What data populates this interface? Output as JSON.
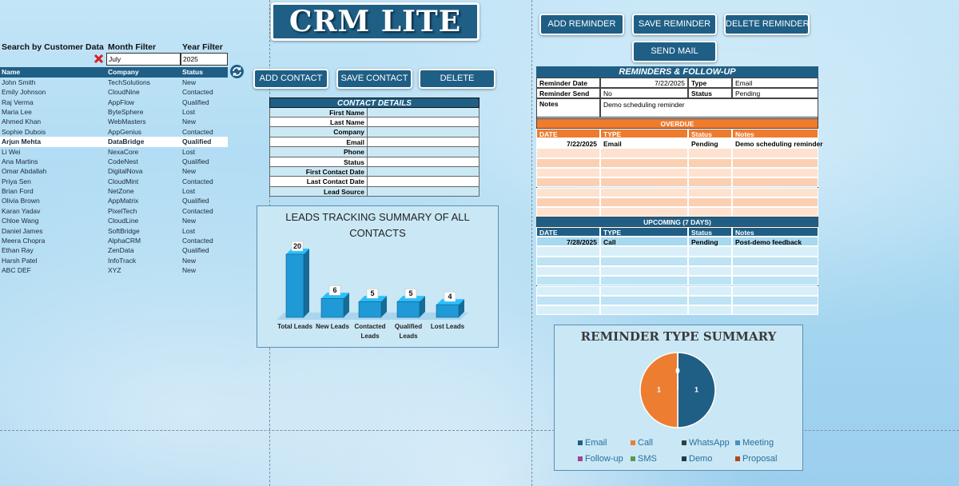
{
  "header": {
    "title": "CRM LITE"
  },
  "buttons": {
    "add_reminder": "ADD REMINDER",
    "save_reminder": "SAVE REMINDER",
    "delete_reminder": "DELETE REMINDER",
    "send_mail": "SEND MAIL",
    "add_contact": "ADD CONTACT",
    "save_contact": "SAVE CONTACT",
    "delete": "DELETE"
  },
  "filters": {
    "search_label": "Search by Customer Data",
    "month_label": "Month Filter",
    "year_label": "Year Filter",
    "month_value": "July",
    "year_value": "2025"
  },
  "contacts": {
    "columns": [
      "Name",
      "Company",
      "Status"
    ],
    "rows": [
      [
        "John Smith",
        "TechSolutions",
        "New"
      ],
      [
        "Emily Johnson",
        "CloudNine",
        "Contacted"
      ],
      [
        "Raj Verma",
        "AppFlow",
        "Qualified"
      ],
      [
        "Maria Lee",
        "ByteSphere",
        "Lost"
      ],
      [
        "Ahmed Khan",
        "WebMasters",
        "New"
      ],
      [
        "Sophie Dubois",
        "AppGenius",
        "Contacted"
      ],
      [
        "Arjun Mehta",
        "DataBridge",
        "Qualified"
      ],
      [
        "Li Wei",
        "NexaCore",
        "Lost"
      ],
      [
        "Ana Martins",
        "CodeNest",
        "Qualified"
      ],
      [
        "Omar Abdallah",
        "DigitalNova",
        "New"
      ],
      [
        "Priya Sen",
        "CloudMint",
        "Contacted"
      ],
      [
        "Brian Ford",
        "NetZone",
        "Lost"
      ],
      [
        "Olivia Brown",
        "AppMatrix",
        "Qualified"
      ],
      [
        "Karan Yadav",
        "PixelTech",
        "Contacted"
      ],
      [
        "Chloe Wang",
        "CloudLine",
        "New"
      ],
      [
        "Daniel James",
        "SoftBridge",
        "Lost"
      ],
      [
        "Meera Chopra",
        "AlphaCRM",
        "Contacted"
      ],
      [
        "Ethan Ray",
        "ZenData",
        "Qualified"
      ],
      [
        "Harsh Patel",
        "InfoTrack",
        "New"
      ],
      [
        "ABC DEF",
        "XYZ",
        "New"
      ]
    ]
  },
  "contact_details": {
    "title": "CONTACT DETAILS",
    "fields": [
      "First Name",
      "Last Name",
      "Company",
      "Email",
      "Phone",
      "Status",
      "First Contact Date",
      "Last Contact Date",
      "Lead Source"
    ]
  },
  "reminders": {
    "title": "REMINDERS & FOLLOW-UP",
    "date_label": "Reminder Date",
    "date": "7/22/2025",
    "type_label": "Type",
    "type": "Email",
    "send_label": "Reminder Send",
    "send": "No",
    "status_label": "Status",
    "status": "Pending",
    "notes_label": "Notes",
    "notes": "Demo scheduling reminder"
  },
  "overdue": {
    "title": "OVERDUE",
    "columns": [
      "DATE",
      "TYPE",
      "Status",
      "Notes"
    ],
    "rows": [
      [
        "7/22/2025",
        "Email",
        "Pending",
        "Demo scheduling reminder"
      ]
    ]
  },
  "upcoming": {
    "title": "UPCOMING (7 DAYS)",
    "columns": [
      "DATE",
      "TYPE",
      "Status",
      "Notes"
    ],
    "rows": [
      [
        "7/28/2025",
        "Call",
        "Pending",
        "Post-demo feedback"
      ]
    ]
  },
  "chart_data": [
    {
      "type": "bar",
      "title": "LEADS TRACKING SUMMARY OF ALL CONTACTS",
      "categories": [
        "Total Leads",
        "New Leads",
        "Contacted Leads",
        "Qualified Leads",
        "Lost Leads"
      ],
      "values": [
        20,
        6,
        5,
        5,
        4
      ],
      "color": "#1f9ad6"
    },
    {
      "type": "pie",
      "title": "REMINDER TYPE SUMMARY",
      "categories": [
        "Email",
        "Call",
        "WhatsApp",
        "Meeting",
        "Follow-up",
        "SMS",
        "Demo",
        "Proposal"
      ],
      "values": [
        1,
        1,
        0,
        0,
        0,
        0,
        0,
        0
      ],
      "colors": [
        "#1f5f86",
        "#ed7d31",
        "#2f3f3f",
        "#4a90c2",
        "#a0449b",
        "#5a9a4a",
        "#1d3c45",
        "#b5471f"
      ]
    }
  ]
}
